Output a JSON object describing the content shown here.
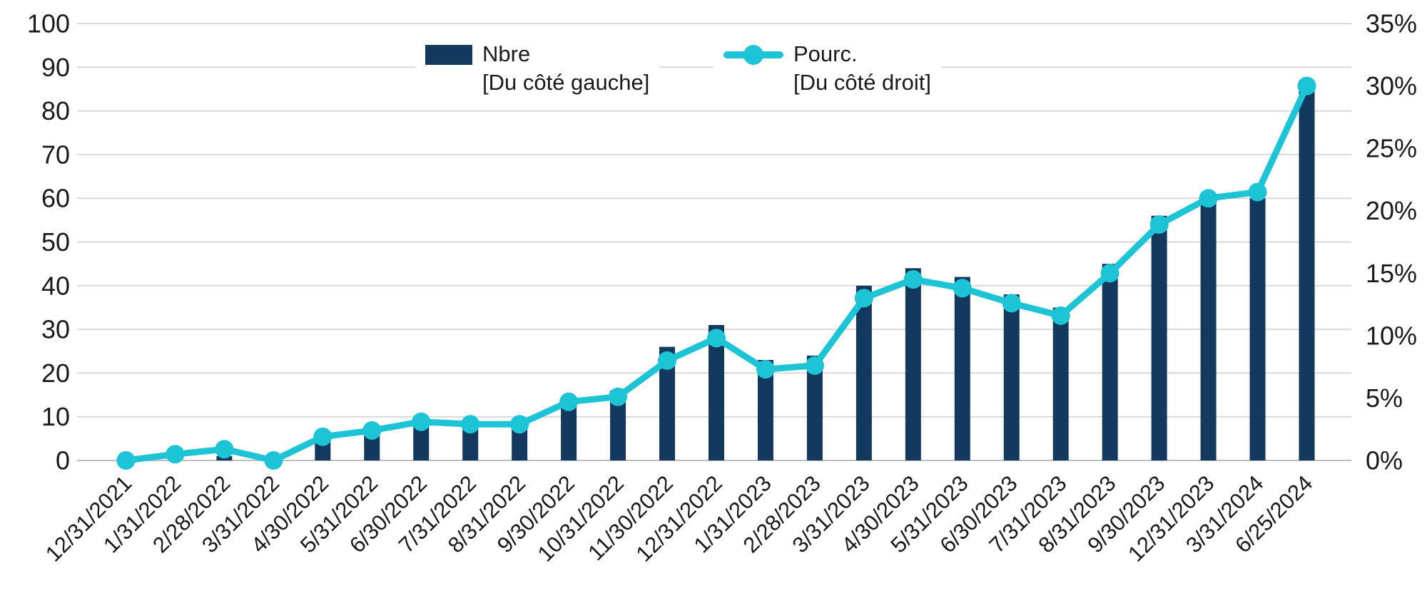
{
  "chart_data": {
    "type": "combo",
    "title": "",
    "categories": [
      "12/31/2021",
      "1/31/2022",
      "2/28/2022",
      "3/31/2022",
      "4/30/2022",
      "5/31/2022",
      "6/30/2022",
      "7/31/2022",
      "8/31/2022",
      "9/30/2022",
      "10/31/2022",
      "11/30/2022",
      "12/31/2022",
      "1/31/2023",
      "2/28/2023",
      "3/31/2023",
      "4/30/2023",
      "5/31/2023",
      "6/30/2023",
      "7/31/2023",
      "8/31/2023",
      "9/30/2023",
      "12/31/2023",
      "3/31/2024",
      "6/25/2024"
    ],
    "series": [
      {
        "name": "Nbre",
        "sublabel": "[Du côté gauche]",
        "type": "bar",
        "axis": "left",
        "values": [
          0,
          0,
          1,
          0,
          5,
          6,
          9,
          8,
          8,
          14,
          16,
          26,
          31,
          23,
          24,
          40,
          44,
          42,
          38,
          35,
          45,
          56,
          59,
          60,
          87
        ]
      },
      {
        "name": "Pourc.",
        "sublabel": "[Du côté droit]",
        "type": "line",
        "axis": "right",
        "values_percent": [
          0,
          0.5,
          0.9,
          0,
          1.9,
          2.4,
          3.1,
          2.9,
          2.9,
          4.7,
          5.1,
          8,
          9.8,
          7.3,
          7.6,
          13,
          14.5,
          13.8,
          12.6,
          11.6,
          15,
          18.9,
          21,
          21.5,
          30
        ]
      }
    ],
    "left_axis": {
      "min": 0,
      "max": 100,
      "step": 10,
      "tick_labels": [
        "100",
        "90",
        "80",
        "70",
        "60",
        "50",
        "40",
        "30",
        "20",
        "10",
        "0"
      ]
    },
    "right_axis": {
      "min": 0,
      "max": 35,
      "step": 5,
      "tick_labels": [
        "35%",
        "30%",
        "25%",
        "20%",
        "15%",
        "10%",
        "5%",
        "0%"
      ]
    },
    "grid": true,
    "legend_position": "top",
    "colors": {
      "bar": "#133A5E",
      "line": "#1DC4D6",
      "grid": "#D9D9D9",
      "axis_line": "#BFBFBF",
      "text": "#1A1A1A"
    }
  },
  "legend": {
    "items": [
      {
        "label": "Nbre",
        "sublabel": "[Du côté gauche]"
      },
      {
        "label": "Pourc.",
        "sublabel": "[Du côté droit]"
      }
    ]
  }
}
